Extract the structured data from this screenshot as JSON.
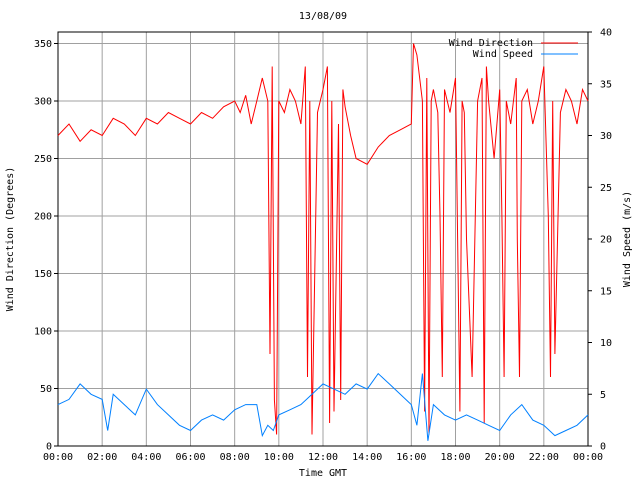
{
  "chart_data": {
    "type": "line",
    "title": "13/08/09",
    "xlabel": "Time GMT",
    "ylabel": "Wind Direction (Degrees)",
    "y2label": "Wind Speed (m/s)",
    "xlim": [
      "00:00",
      "24:00"
    ],
    "ylim": [
      0,
      360
    ],
    "y2lim": [
      0,
      40
    ],
    "grid": true,
    "legend": "top-right",
    "x_ticks": [
      "00:00",
      "02:00",
      "04:00",
      "06:00",
      "08:00",
      "10:00",
      "12:00",
      "14:00",
      "16:00",
      "18:00",
      "20:00",
      "22:00",
      "00:00"
    ],
    "y_ticks": [
      "0",
      "50",
      "100",
      "150",
      "200",
      "250",
      "300",
      "350"
    ],
    "y2_ticks": [
      "0",
      "5",
      "10",
      "15",
      "20",
      "25",
      "30",
      "35",
      "40"
    ],
    "series": [
      {
        "name": "Wind Direction",
        "axis": "left",
        "color": "#ff0000",
        "x_hours": [
          0,
          0.5,
          1,
          1.5,
          2,
          2.5,
          3,
          3.5,
          4,
          4.5,
          5,
          5.5,
          6,
          6.5,
          7,
          7.5,
          8,
          8.25,
          8.5,
          8.75,
          9,
          9.25,
          9.5,
          9.6,
          9.7,
          9.8,
          9.9,
          10,
          10.25,
          10.5,
          10.75,
          11,
          11.2,
          11.3,
          11.4,
          11.5,
          11.75,
          12,
          12.2,
          12.3,
          12.4,
          12.5,
          12.7,
          12.8,
          12.9,
          13,
          13.25,
          13.5,
          14,
          14.5,
          15,
          15.5,
          16,
          16.1,
          16.25,
          16.5,
          16.6,
          16.7,
          16.8,
          16.9,
          17,
          17.2,
          17.3,
          17.4,
          17.5,
          17.75,
          18,
          18.2,
          18.3,
          18.4,
          18.5,
          18.75,
          19,
          19.2,
          19.3,
          19.4,
          19.5,
          19.75,
          20,
          20.1,
          20.2,
          20.3,
          20.5,
          20.75,
          20.8,
          20.9,
          21,
          21.25,
          21.5,
          21.75,
          22,
          22.2,
          22.3,
          22.4,
          22.5,
          22.75,
          23,
          23.25,
          23.5,
          23.75,
          24
        ],
        "values": [
          270,
          280,
          265,
          275,
          270,
          285,
          280,
          270,
          285,
          280,
          290,
          285,
          280,
          290,
          285,
          295,
          300,
          290,
          305,
          280,
          300,
          320,
          300,
          80,
          330,
          40,
          10,
          300,
          290,
          310,
          300,
          280,
          330,
          60,
          300,
          10,
          290,
          310,
          330,
          20,
          300,
          30,
          280,
          40,
          310,
          295,
          270,
          250,
          245,
          260,
          270,
          275,
          280,
          350,
          340,
          300,
          30,
          320,
          10,
          300,
          310,
          290,
          200,
          60,
          310,
          290,
          320,
          30,
          300,
          290,
          180,
          60,
          300,
          320,
          20,
          330,
          300,
          250,
          310,
          200,
          60,
          300,
          280,
          320,
          180,
          60,
          300,
          310,
          280,
          300,
          330,
          200,
          60,
          300,
          80,
          290,
          310,
          300,
          280,
          310,
          300
        ]
      },
      {
        "name": "Wind Speed",
        "axis": "right",
        "color": "#0080ff",
        "x_hours": [
          0,
          0.5,
          1,
          1.5,
          2,
          2.25,
          2.5,
          3,
          3.5,
          4,
          4.5,
          5,
          5.5,
          6,
          6.5,
          7,
          7.5,
          8,
          8.5,
          9,
          9.25,
          9.5,
          9.75,
          10,
          10.5,
          11,
          11.5,
          12,
          12.5,
          13,
          13.5,
          14,
          14.5,
          15,
          15.5,
          16,
          16.25,
          16.5,
          16.75,
          17,
          17.5,
          18,
          18.5,
          19,
          19.5,
          20,
          20.5,
          21,
          21.5,
          22,
          22.5,
          23,
          23.5,
          24
        ],
        "values": [
          4,
          4.5,
          6,
          5,
          4.5,
          1.5,
          5,
          4,
          3,
          5.5,
          4,
          3,
          2,
          1.5,
          2.5,
          3,
          2.5,
          3.5,
          4,
          4,
          1,
          2,
          1.5,
          3,
          3.5,
          4,
          5,
          6,
          5.5,
          5,
          6,
          5.5,
          7,
          6,
          5,
          4,
          2,
          7,
          0.5,
          4,
          3,
          2.5,
          3,
          2.5,
          2,
          1.5,
          3,
          4,
          2.5,
          2,
          1,
          1.5,
          2,
          3
        ]
      }
    ]
  }
}
